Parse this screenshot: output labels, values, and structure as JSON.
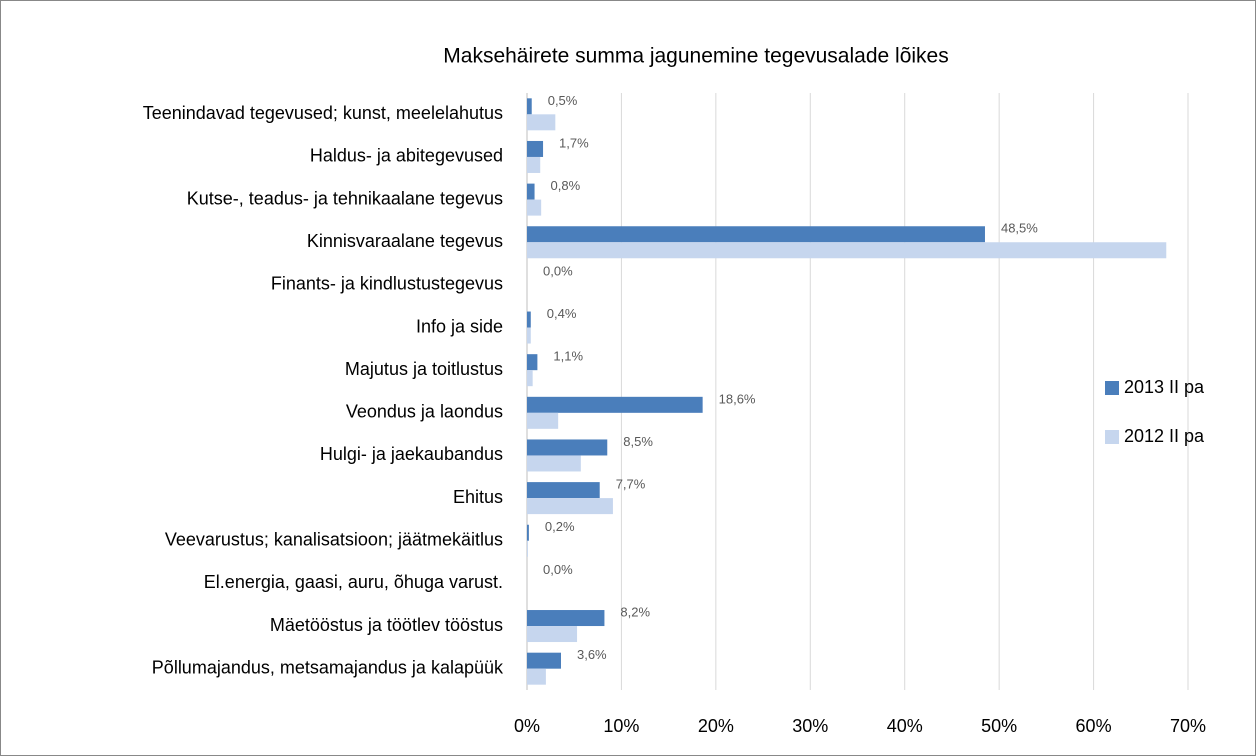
{
  "chart_data": {
    "type": "barh",
    "title": "Maksehäirete summa jagunemine tegevusalade lõikes",
    "categories": [
      "Teenindavad tegevused; kunst, meelelahutus",
      "Haldus- ja abitegevused",
      "Kutse-, teadus- ja tehnikaalane tegevus",
      "Kinnisvaraalane tegevus",
      "Finants- ja kindlustustegevus",
      "Info ja side",
      "Majutus ja toitlustus",
      "Veondus ja laondus",
      "Hulgi- ja jaekaubandus",
      "Ehitus",
      "Veevarustus; kanalisatsioon; jäätmekäitlus",
      "El.energia, gaasi, auru, õhuga varust.",
      "Mäetööstus ja töötlev tööstus",
      "Põllumajandus, metsamajandus ja kalapüük"
    ],
    "series": [
      {
        "name": "2013 II pa",
        "color": "#4a7ebb",
        "values": [
          0.5,
          1.7,
          0.8,
          48.5,
          0.0,
          0.4,
          1.1,
          18.6,
          8.5,
          7.7,
          0.2,
          0.0,
          8.2,
          3.6
        ],
        "value_labels": [
          "0,5%",
          "1,7%",
          "0,8%",
          "48,5%",
          "0,0%",
          "0,4%",
          "1,1%",
          "18,6%",
          "8,5%",
          "7,7%",
          "0,2%",
          "0,0%",
          "8,2%",
          "3,6%"
        ]
      },
      {
        "name": "2012 II pa",
        "color": "#c6d6ee",
        "values": [
          3.0,
          1.4,
          1.5,
          67.7,
          0.0,
          0.4,
          0.6,
          3.3,
          5.7,
          9.1,
          0.1,
          0.0,
          5.3,
          2.0
        ]
      }
    ],
    "xlim": [
      0,
      70
    ],
    "xticks": [
      {
        "value": 0,
        "label": "0%"
      },
      {
        "value": 10,
        "label": "10%"
      },
      {
        "value": 20,
        "label": "20%"
      },
      {
        "value": 30,
        "label": "30%"
      },
      {
        "value": 40,
        "label": "40%"
      },
      {
        "value": 50,
        "label": "50%"
      },
      {
        "value": 60,
        "label": "60%"
      },
      {
        "value": 70,
        "label": "70%"
      }
    ],
    "grid": true,
    "legend": "right"
  }
}
